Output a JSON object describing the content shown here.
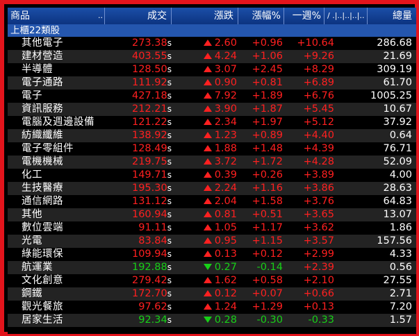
{
  "colors": {
    "up": "#ff2020",
    "down": "#17d017",
    "header_bg": "#1b4fa8",
    "frame": "#e3141c"
  },
  "header": {
    "name": "商品",
    "dots1": "..",
    "price": "成交",
    "change": "漲跌",
    "pct": "漲幅%",
    "week": "一週%",
    "extra": "/ .|..|..|..|..",
    "total": "總量"
  },
  "group": "上櫃22類股",
  "rows": [
    {
      "name": "其他電子",
      "price": "273.38",
      "dir": "up",
      "change": "2.60",
      "pct": "+0.96",
      "week": "+10.64",
      "total": "286.68"
    },
    {
      "name": "建材營造",
      "price": "403.55",
      "dir": "up",
      "change": "4.24",
      "pct": "+1.06",
      "week": "+9.26",
      "total": "21.69"
    },
    {
      "name": "半導體",
      "price": "128.50",
      "dir": "up",
      "change": "3.07",
      "pct": "+2.45",
      "week": "+8.29",
      "total": "309.19"
    },
    {
      "name": "電子通路",
      "price": "111.92",
      "dir": "up",
      "change": "0.90",
      "pct": "+0.81",
      "week": "+6.89",
      "total": "61.70"
    },
    {
      "name": "電子",
      "price": "427.18",
      "dir": "up",
      "change": "7.92",
      "pct": "+1.89",
      "week": "+6.76",
      "total": "1005.25"
    },
    {
      "name": "資訊服務",
      "price": "212.21",
      "dir": "up",
      "change": "3.90",
      "pct": "+1.87",
      "week": "+5.45",
      "total": "10.67"
    },
    {
      "name": "電腦及週邊設備",
      "price": "121.22",
      "dir": "up",
      "change": "2.34",
      "pct": "+1.97",
      "week": "+5.12",
      "total": "37.92"
    },
    {
      "name": "紡織纖維",
      "price": "138.92",
      "dir": "up",
      "change": "1.23",
      "pct": "+0.89",
      "week": "+4.40",
      "total": "0.64"
    },
    {
      "name": "電子零組件",
      "price": "128.49",
      "dir": "up",
      "change": "1.88",
      "pct": "+1.48",
      "week": "+4.39",
      "total": "76.71"
    },
    {
      "name": "電機機械",
      "price": "219.75",
      "dir": "up",
      "change": "3.72",
      "pct": "+1.72",
      "week": "+4.28",
      "total": "52.09"
    },
    {
      "name": "化工",
      "price": "149.71",
      "dir": "up",
      "change": "0.39",
      "pct": "+0.26",
      "week": "+3.89",
      "total": "4.00"
    },
    {
      "name": "生技醫療",
      "price": "195.30",
      "dir": "up",
      "change": "2.24",
      "pct": "+1.16",
      "week": "+3.86",
      "total": "28.63"
    },
    {
      "name": "通信網路",
      "price": "131.12",
      "dir": "up",
      "change": "2.04",
      "pct": "+1.58",
      "week": "+3.76",
      "total": "64.83"
    },
    {
      "name": "其他",
      "price": "160.94",
      "dir": "up",
      "change": "0.81",
      "pct": "+0.51",
      "week": "+3.65",
      "total": "13.07"
    },
    {
      "name": "數位雲端",
      "price": "91.11",
      "dir": "up",
      "change": "1.05",
      "pct": "+1.17",
      "week": "+3.62",
      "total": "1.86"
    },
    {
      "name": "光電",
      "price": "83.84",
      "dir": "up",
      "change": "0.95",
      "pct": "+1.15",
      "week": "+3.57",
      "total": "157.56"
    },
    {
      "name": "綠能環保",
      "price": "109.94",
      "dir": "up",
      "change": "0.13",
      "pct": "+0.12",
      "week": "+2.99",
      "total": "4.33"
    },
    {
      "name": "航運業",
      "price": "192.88",
      "dir": "down",
      "change": "0.27",
      "pct": "-0.14",
      "week": "+2.39",
      "total": "0.56"
    },
    {
      "name": "文化創意",
      "price": "279.42",
      "dir": "up",
      "change": "1.62",
      "pct": "+0.58",
      "week": "+2.10",
      "total": "27.55"
    },
    {
      "name": "鋼鐵",
      "price": "172.70",
      "dir": "up",
      "change": "0.12",
      "pct": "+0.07",
      "week": "+0.66",
      "total": "2.71"
    },
    {
      "name": "觀光餐旅",
      "price": "97.62",
      "dir": "up",
      "change": "1.24",
      "pct": "+1.29",
      "week": "+0.13",
      "total": "7.20"
    },
    {
      "name": "居家生活",
      "price": "92.34",
      "dir": "down",
      "change": "0.28",
      "pct": "-0.30",
      "week": "-0.33",
      "total": "1.57"
    }
  ],
  "price_suffix": "s"
}
